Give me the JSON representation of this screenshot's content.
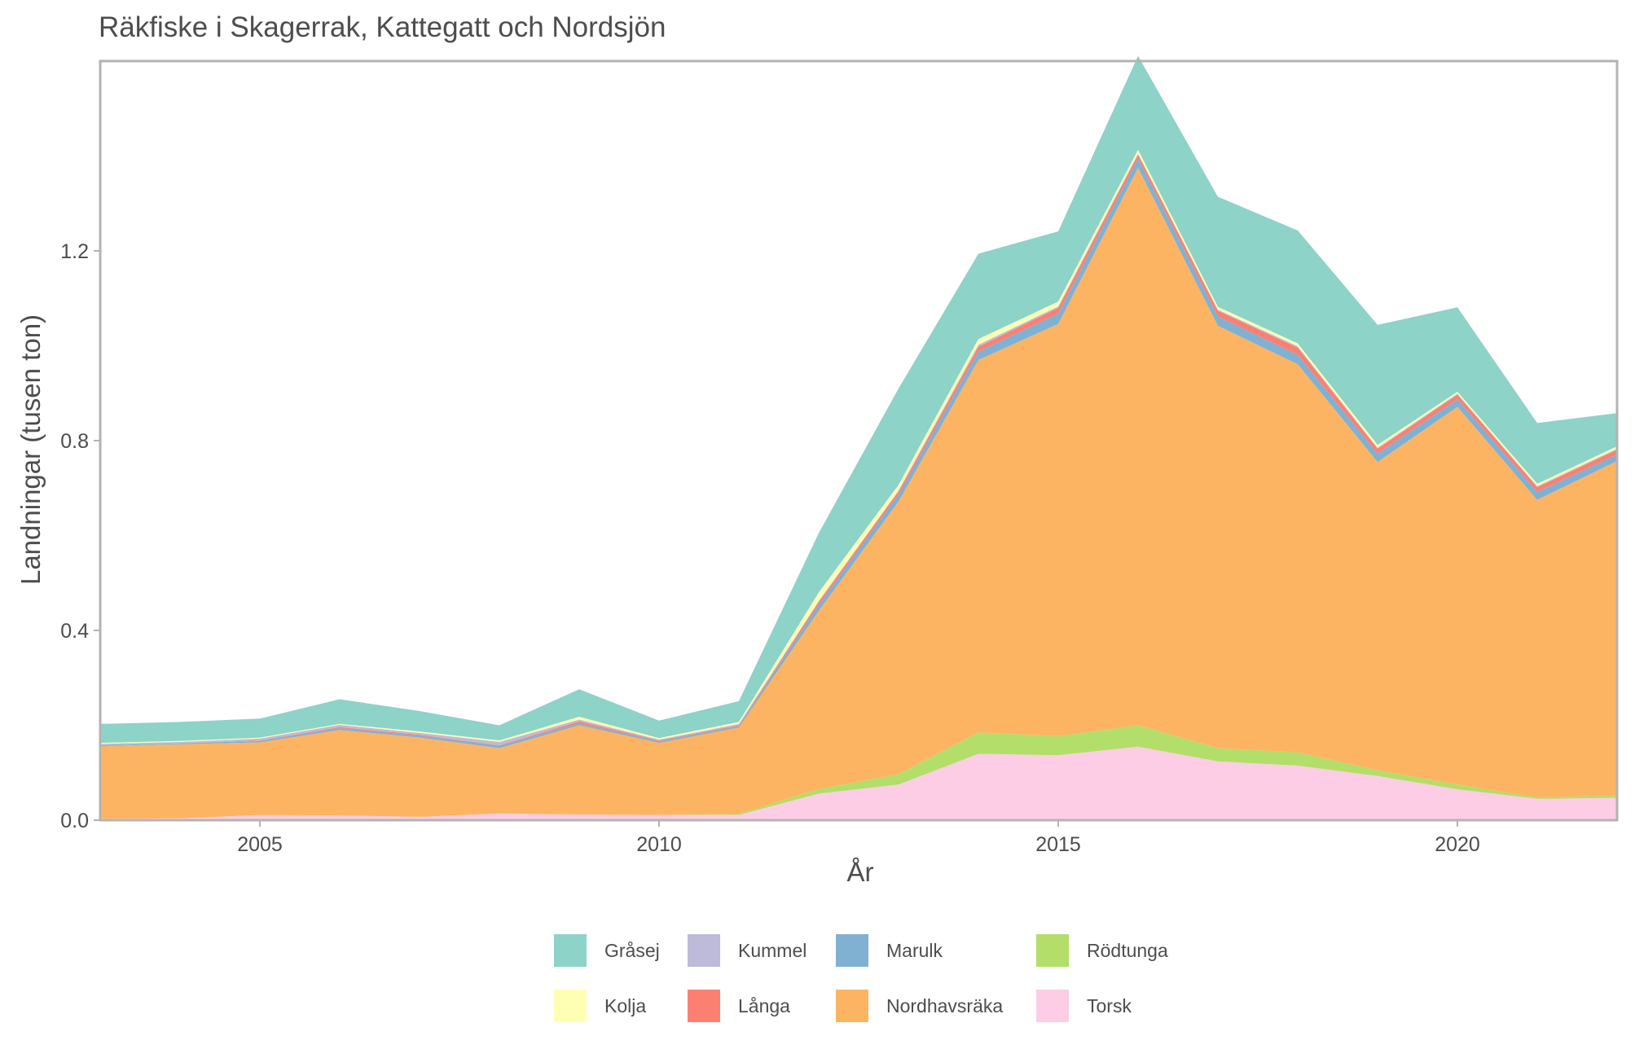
{
  "chart_data": {
    "type": "area",
    "stacked": true,
    "title": "Räkfiske i Skagerrak, Kattegatt och Nordsjön",
    "xlabel": "År",
    "ylabel": "Landningar (tusen ton)",
    "xlim": [
      2003,
      2022
    ],
    "ylim": [
      0,
      1.6
    ],
    "xticks": [
      2005,
      2010,
      2015,
      2020
    ],
    "yticks": [
      "0.0",
      "0.4",
      "0.8",
      "1.2"
    ],
    "grid": false,
    "legend_position": "bottom",
    "x": [
      2003,
      2004,
      2005,
      2006,
      2007,
      2008,
      2009,
      2010,
      2011,
      2012,
      2013,
      2014,
      2015,
      2016,
      2017,
      2018,
      2019,
      2020,
      2021,
      2022
    ],
    "series": [
      {
        "name": "Torsk",
        "color": "#FCCDE5",
        "values": [
          0.003,
          0.004,
          0.011,
          0.01,
          0.007,
          0.014,
          0.012,
          0.011,
          0.011,
          0.056,
          0.075,
          0.14,
          0.137,
          0.155,
          0.124,
          0.115,
          0.093,
          0.065,
          0.045,
          0.047
        ]
      },
      {
        "name": "Rödtunga",
        "color": "#B3DE69",
        "values": [
          0.0,
          0.0,
          0.0,
          0.0,
          0.0,
          0.0,
          0.0,
          0.0,
          0.002,
          0.01,
          0.022,
          0.045,
          0.04,
          0.045,
          0.028,
          0.028,
          0.012,
          0.01,
          0.003,
          0.005
        ]
      },
      {
        "name": "Nordhavsräka",
        "color": "#FDB462",
        "values": [
          0.153,
          0.156,
          0.153,
          0.18,
          0.167,
          0.138,
          0.188,
          0.152,
          0.182,
          0.375,
          0.575,
          0.785,
          0.869,
          1.175,
          0.89,
          0.818,
          0.65,
          0.796,
          0.627,
          0.705
        ]
      },
      {
        "name": "Marulk",
        "color": "#80B1D3",
        "values": [
          0.002,
          0.002,
          0.003,
          0.004,
          0.004,
          0.005,
          0.004,
          0.003,
          0.003,
          0.013,
          0.015,
          0.018,
          0.022,
          0.02,
          0.02,
          0.02,
          0.018,
          0.016,
          0.017,
          0.014
        ]
      },
      {
        "name": "Långa",
        "color": "#FB8072",
        "values": [
          0.0,
          0.0,
          0.001,
          0.002,
          0.002,
          0.001,
          0.004,
          0.002,
          0.002,
          0.006,
          0.006,
          0.01,
          0.012,
          0.008,
          0.012,
          0.015,
          0.01,
          0.01,
          0.01,
          0.01
        ]
      },
      {
        "name": "Kummel",
        "color": "#BEBADA",
        "values": [
          0.003,
          0.003,
          0.004,
          0.005,
          0.004,
          0.007,
          0.004,
          0.002,
          0.003,
          0.002,
          0.002,
          0.004,
          0.003,
          0.002,
          0.002,
          0.003,
          0.002,
          0.002,
          0.002,
          0.002
        ]
      },
      {
        "name": "Kolja",
        "color": "#FFFFB3",
        "values": [
          0.002,
          0.002,
          0.002,
          0.002,
          0.003,
          0.003,
          0.006,
          0.003,
          0.004,
          0.018,
          0.012,
          0.012,
          0.01,
          0.008,
          0.006,
          0.006,
          0.006,
          0.004,
          0.005,
          0.005
        ]
      },
      {
        "name": "Gråsej",
        "color": "#8DD3C7",
        "values": [
          0.04,
          0.04,
          0.04,
          0.052,
          0.043,
          0.032,
          0.058,
          0.037,
          0.044,
          0.125,
          0.203,
          0.18,
          0.148,
          0.198,
          0.232,
          0.238,
          0.253,
          0.178,
          0.128,
          0.07
        ]
      }
    ]
  },
  "legend": {
    "items": [
      {
        "label": "Gråsej",
        "color": "#8DD3C7"
      },
      {
        "label": "Kummel",
        "color": "#BEBADA"
      },
      {
        "label": "Marulk",
        "color": "#80B1D3"
      },
      {
        "label": "Rödtunga",
        "color": "#B3DE69"
      },
      {
        "label": "Kolja",
        "color": "#FFFFB3"
      },
      {
        "label": "Långa",
        "color": "#FB8072"
      },
      {
        "label": "Nordhavsräka",
        "color": "#FDB462"
      },
      {
        "label": "Torsk",
        "color": "#FCCDE5"
      }
    ]
  }
}
